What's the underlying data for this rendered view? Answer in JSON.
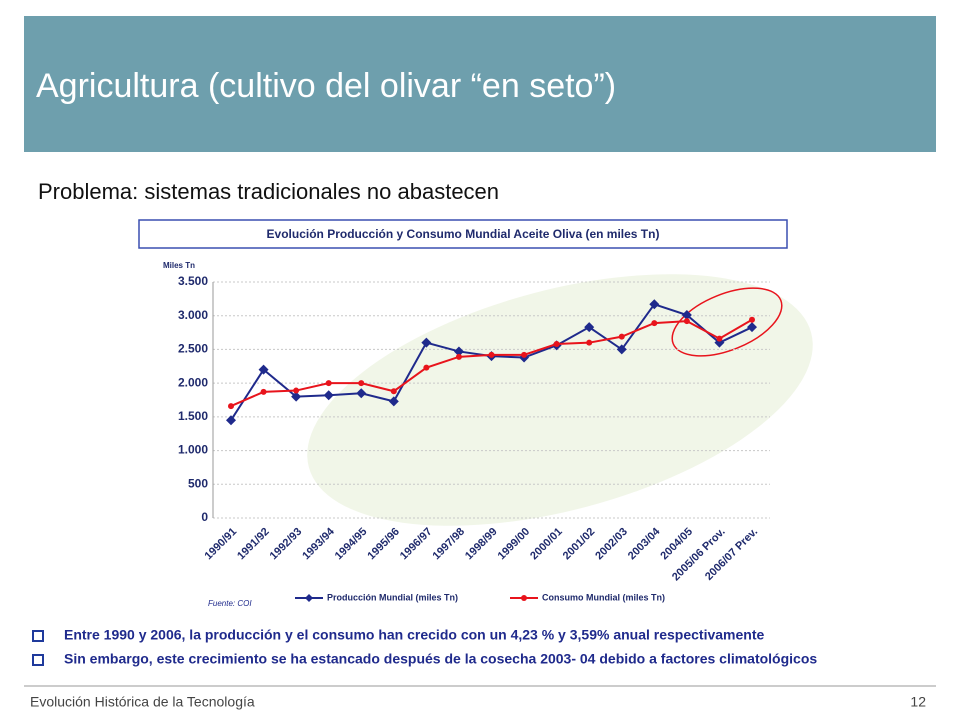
{
  "slide_title": "Agricultura (cultivo del olivar “en seto”)",
  "subtitle": "Problema: sistemas tradicionales no abastecen",
  "chart_data": {
    "type": "line",
    "title": "Evolución Producción y Consumo Mundial Aceite Oliva (en miles Tn)",
    "y_label": "Miles Tn",
    "source": "Fuente: COI",
    "categories": [
      "1990/91",
      "1991/92",
      "1992/93",
      "1993/94",
      "1994/95",
      "1995/96",
      "1996/97",
      "1997/98",
      "1998/99",
      "1999/00",
      "2000/01",
      "2001/02",
      "2002/03",
      "2003/04",
      "2004/05",
      "2005/06 Prov.",
      "2006/07 Prev."
    ],
    "series": [
      {
        "name": "Producción Mundial (miles Tn)",
        "color": "#1f2a8c",
        "marker": "diamond",
        "values": [
          1450,
          2200,
          1800,
          1820,
          1850,
          1730,
          2600,
          2470,
          2400,
          2380,
          2560,
          2830,
          2500,
          3170,
          3010,
          2600,
          2830
        ]
      },
      {
        "name": "Consumo Mundial (miles Tn)",
        "color": "#e8141c",
        "marker": "circle",
        "values": [
          1660,
          1870,
          1890,
          2000,
          2000,
          1880,
          2230,
          2390,
          2420,
          2420,
          2580,
          2600,
          2690,
          2890,
          2920,
          2660,
          2940
        ]
      }
    ],
    "ylim": [
      0,
      3500
    ],
    "yticks": [
      0,
      500,
      {
        "value": 1000,
        "label": "1.000"
      },
      {
        "value": 1500,
        "label": "1.500"
      },
      {
        "value": 2000,
        "label": "2.000"
      },
      {
        "value": 2500,
        "label": "2.500"
      },
      {
        "value": 3000,
        "label": "3.000"
      },
      {
        "value": 3500,
        "label": "3.500"
      }
    ],
    "grid": true
  },
  "bullets": [
    "Entre 1990 y 2006, la producción y el consumo han crecido con un 4,23 % y 3,59%  anual respectivamente",
    "Sin embargo, este crecimiento se ha estancado después de la cosecha 2003- 04 debido a factores climatológicos"
  ],
  "footer": {
    "left": "Evolución Histórica de la Tecnología",
    "page": "12"
  }
}
